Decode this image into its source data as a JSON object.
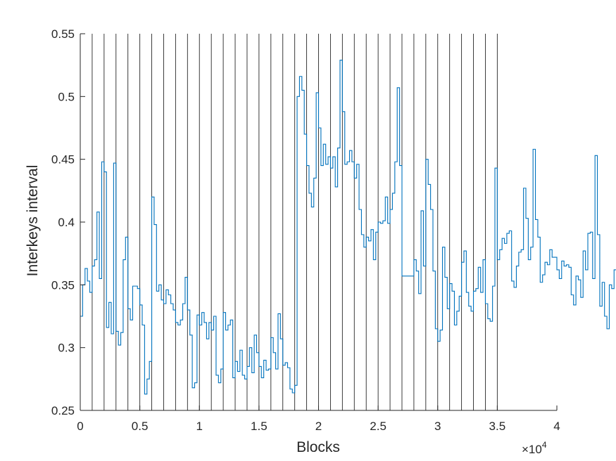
{
  "chart_data": {
    "type": "line",
    "title": "",
    "xlabel": "Blocks",
    "ylabel": "Interkeys interval",
    "x_exponent_label": "×10",
    "x_exponent_power": "4",
    "xlim": [
      0,
      40000
    ],
    "ylim": [
      0.25,
      0.55
    ],
    "x_tick_values": [
      0,
      0.5,
      1,
      1.5,
      2,
      2.5,
      3,
      3.5,
      4
    ],
    "x_tick_labels": [
      "0",
      "0.5",
      "1",
      "1.5",
      "2",
      "2.5",
      "3",
      "3.5",
      "4"
    ],
    "y_tick_values": [
      0.25,
      0.3,
      0.35,
      0.4,
      0.45,
      0.5,
      0.55
    ],
    "y_tick_labels": [
      "0.25",
      "0.3",
      "0.35",
      "0.4",
      "0.45",
      "0.5",
      "0.55"
    ],
    "block_boundaries_x": [
      1000,
      2000,
      3000,
      4000,
      5000,
      6000,
      7000,
      8000,
      9000,
      10000,
      11000,
      12000,
      13000,
      14000,
      15000,
      16000,
      17000,
      18000,
      19000,
      20000,
      21000,
      22000,
      23000,
      24000,
      25000,
      26000,
      27000,
      28000,
      29000,
      30000,
      31000,
      32000,
      33000,
      34000,
      35000
    ],
    "step_width": 200,
    "series": [
      {
        "color": "#0072BD",
        "x_start": 0,
        "values": [
          0.325,
          0.35,
          0.363,
          0.353,
          0.344,
          0.365,
          0.37,
          0.408,
          0.355,
          0.448,
          0.44,
          0.316,
          0.336,
          0.311,
          0.447,
          0.313,
          0.302,
          0.312,
          0.37,
          0.388,
          0.331,
          0.322,
          0.349,
          0.349,
          0.347,
          0.334,
          0.318,
          0.263,
          0.275,
          0.289,
          0.42,
          0.398,
          0.345,
          0.35,
          0.338,
          0.335,
          0.346,
          0.342,
          0.335,
          0.33,
          0.32,
          0.318,
          0.322,
          0.335,
          0.356,
          0.33,
          0.31,
          0.268,
          0.272,
          0.326,
          0.318,
          0.328,
          0.32,
          0.307,
          0.32,
          0.314,
          0.325,
          0.278,
          0.272,
          0.283,
          0.328,
          0.314,
          0.318,
          0.322,
          0.276,
          0.289,
          0.281,
          0.298,
          0.278,
          0.275,
          0.285,
          0.3,
          0.28,
          0.31,
          0.296,
          0.285,
          0.276,
          0.29,
          0.282,
          0.283,
          0.308,
          0.296,
          0.283,
          0.327,
          0.307,
          0.286,
          0.288,
          0.284,
          0.267,
          0.264,
          0.27,
          0.5,
          0.516,
          0.505,
          0.47,
          0.445,
          0.423,
          0.412,
          0.435,
          0.503,
          0.475,
          0.445,
          0.462,
          0.446,
          0.452,
          0.443,
          0.452,
          0.428,
          0.459,
          0.529,
          0.488,
          0.446,
          0.448,
          0.457,
          0.448,
          0.435,
          0.446,
          0.41,
          0.39,
          0.38,
          0.388,
          0.385,
          0.394,
          0.37,
          0.392,
          0.4,
          0.399,
          0.401,
          0.42,
          0.399,
          0.41,
          0.423,
          0.448,
          0.507,
          0.445,
          0.357,
          0.357,
          0.357,
          0.357,
          0.357,
          0.37,
          0.361,
          0.343,
          0.409,
          0.365,
          0.45,
          0.43,
          0.41,
          0.361,
          0.315,
          0.305,
          0.314,
          0.38,
          0.356,
          0.331,
          0.351,
          0.345,
          0.318,
          0.329,
          0.341,
          0.368,
          0.377,
          0.344,
          0.333,
          0.329,
          0.345,
          0.347,
          0.364,
          0.344,
          0.37,
          0.335,
          0.323,
          0.321,
          0.349,
          0.443,
          0.37,
          0.378,
          0.387,
          0.383,
          0.391,
          0.393,
          0.353,
          0.348,
          0.365,
          0.376,
          0.378,
          0.427,
          0.403,
          0.37,
          0.38,
          0.458,
          0.402,
          0.388,
          0.352,
          0.358,
          0.368,
          0.366,
          0.378,
          0.372,
          0.372,
          0.362,
          0.355,
          0.369,
          0.365,
          0.366,
          0.364,
          0.342,
          0.334,
          0.357,
          0.354,
          0.34,
          0.377,
          0.362,
          0.391,
          0.392,
          0.355,
          0.453,
          0.39,
          0.333,
          0.352,
          0.325,
          0.315,
          0.35,
          0.347,
          0.362,
          0.375,
          0.372,
          0.354,
          0.362,
          0.363
        ]
      }
    ],
    "grid": false,
    "legend": "none"
  }
}
